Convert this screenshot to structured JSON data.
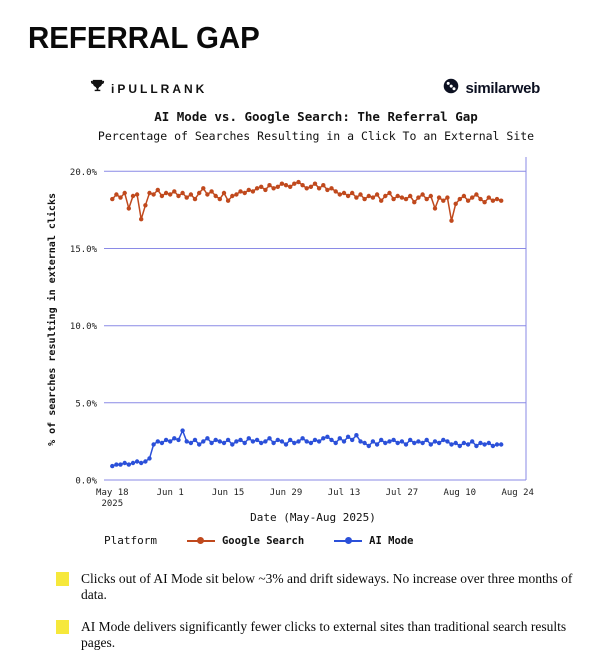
{
  "page": {
    "title": "REFERRAL GAP"
  },
  "logos": {
    "ipullrank": "iPULLRANK",
    "similarweb": "similarweb"
  },
  "colors": {
    "grid": "#8a8ae6",
    "google": "#c0491d",
    "ai": "#2b50d9",
    "highlight": "#f6e83b",
    "text": "#111111"
  },
  "chart_data": {
    "type": "line",
    "title": "AI Mode vs. Google Search: The Referral Gap",
    "subtitle": "Percentage of Searches Resulting in a Click To an External Site",
    "xlabel": "Date (May-Aug 2025)",
    "ylabel": "% of searches resulting in external clicks",
    "x_unit": "days since May 18 2025 (index = day)",
    "xlim": [
      -2,
      100
    ],
    "ylim": [
      0,
      20.8
    ],
    "grid": "horizontal only",
    "legend_title": "Platform",
    "legend_position": "bottom-left",
    "xticks": [
      {
        "value": 0,
        "label": "May 18",
        "label2": "2025"
      },
      {
        "value": 14,
        "label": "Jun 1"
      },
      {
        "value": 28,
        "label": "Jun 15"
      },
      {
        "value": 42,
        "label": "Jun 29"
      },
      {
        "value": 56,
        "label": "Jul 13"
      },
      {
        "value": 70,
        "label": "Jul 27"
      },
      {
        "value": 84,
        "label": "Aug 10"
      },
      {
        "value": 98,
        "label": "Aug 24"
      }
    ],
    "yticks": [
      {
        "value": 0,
        "label": "0.0%"
      },
      {
        "value": 5,
        "label": "5.0%"
      },
      {
        "value": 10,
        "label": "10.0%"
      },
      {
        "value": 15,
        "label": "15.0%"
      },
      {
        "value": 20,
        "label": "20.0%"
      }
    ],
    "series": [
      {
        "name": "Google Search",
        "color": "#c0491d",
        "values": [
          18.2,
          18.5,
          18.3,
          18.6,
          17.6,
          18.4,
          18.5,
          16.9,
          17.8,
          18.6,
          18.5,
          18.8,
          18.4,
          18.6,
          18.5,
          18.7,
          18.4,
          18.6,
          18.3,
          18.5,
          18.2,
          18.6,
          18.9,
          18.5,
          18.7,
          18.4,
          18.2,
          18.6,
          18.1,
          18.4,
          18.5,
          18.7,
          18.6,
          18.8,
          18.7,
          18.9,
          19.0,
          18.8,
          19.1,
          18.9,
          19.0,
          19.2,
          19.1,
          19.0,
          19.2,
          19.3,
          19.1,
          18.9,
          19.0,
          19.2,
          18.9,
          19.1,
          18.8,
          18.9,
          18.7,
          18.5,
          18.6,
          18.4,
          18.6,
          18.3,
          18.5,
          18.2,
          18.4,
          18.3,
          18.5,
          18.1,
          18.4,
          18.6,
          18.2,
          18.4,
          18.3,
          18.2,
          18.4,
          18.0,
          18.3,
          18.5,
          18.2,
          18.4,
          17.6,
          18.3,
          18.1,
          18.3,
          16.8,
          17.9,
          18.2,
          18.4,
          18.1,
          18.3,
          18.5,
          18.2,
          18.0,
          18.3,
          18.1,
          18.2,
          18.1
        ]
      },
      {
        "name": "AI Mode",
        "color": "#2b50d9",
        "values": [
          0.9,
          1.0,
          1.0,
          1.1,
          1.0,
          1.1,
          1.2,
          1.1,
          1.2,
          1.4,
          2.3,
          2.5,
          2.4,
          2.6,
          2.5,
          2.7,
          2.6,
          3.2,
          2.5,
          2.4,
          2.6,
          2.3,
          2.5,
          2.7,
          2.4,
          2.6,
          2.5,
          2.4,
          2.6,
          2.3,
          2.5,
          2.6,
          2.4,
          2.7,
          2.5,
          2.6,
          2.4,
          2.5,
          2.7,
          2.4,
          2.6,
          2.5,
          2.3,
          2.6,
          2.4,
          2.5,
          2.7,
          2.5,
          2.4,
          2.6,
          2.5,
          2.7,
          2.8,
          2.6,
          2.4,
          2.7,
          2.5,
          2.8,
          2.6,
          2.9,
          2.5,
          2.4,
          2.2,
          2.5,
          2.3,
          2.6,
          2.4,
          2.5,
          2.6,
          2.4,
          2.5,
          2.3,
          2.6,
          2.4,
          2.5,
          2.4,
          2.6,
          2.3,
          2.5,
          2.4,
          2.6,
          2.5,
          2.3,
          2.4,
          2.2,
          2.4,
          2.3,
          2.5,
          2.2,
          2.4,
          2.3,
          2.4,
          2.2,
          2.3,
          2.3
        ]
      }
    ]
  },
  "annotations": [
    {
      "text": "Clicks out of AI Mode sit below ~3% and drift sideways. No increase over three months of data."
    },
    {
      "text": "AI Mode delivers significantly fewer clicks to external sites than traditional search results pages."
    }
  ]
}
